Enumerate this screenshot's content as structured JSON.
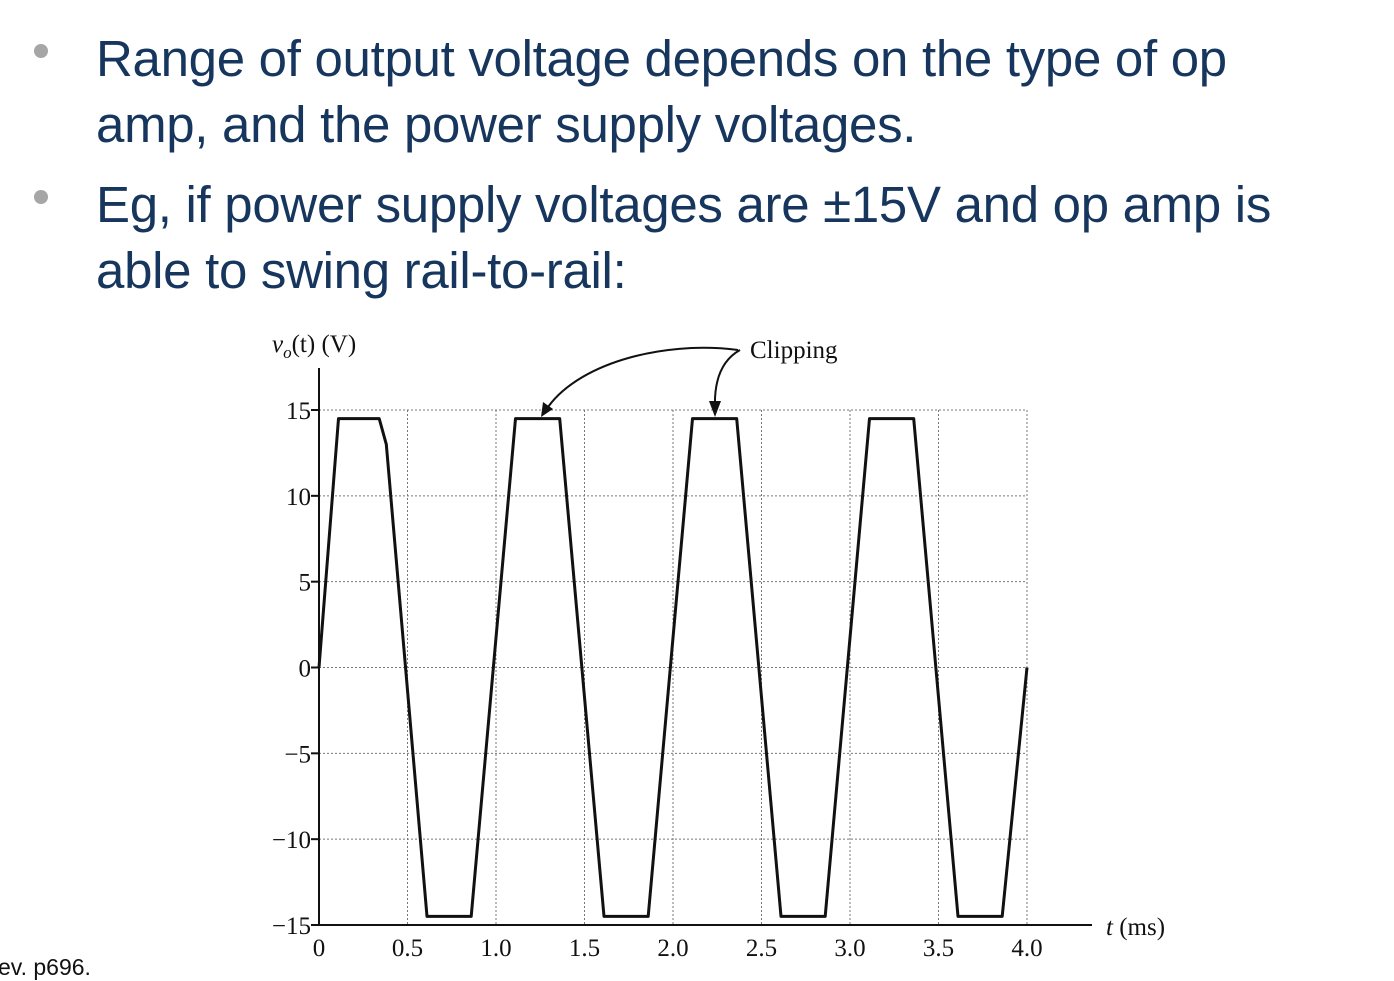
{
  "slide": {
    "bullets": [
      {
        "line1": "Range of output voltage depends on the type of op",
        "line2": "amp, and the power supply voltages."
      },
      {
        "line1": "Eg, if power supply voltages are ±15V and op amp is",
        "line2": "able to swing rail-to-rail:"
      }
    ],
    "source_note": "ev. p696."
  },
  "chart_data": {
    "type": "line",
    "ylabel_main": "v",
    "ylabel_sub": "o",
    "ylabel_rest": "(t) (V)",
    "xlabel_var": "t",
    "xlabel_unit": " (ms)",
    "annotation": "Clipping",
    "xlim": [
      0,
      4.0
    ],
    "ylim": [
      -15,
      15
    ],
    "grid": true,
    "x_ticks": [
      0,
      0.5,
      1.0,
      1.5,
      2.0,
      2.5,
      3.0,
      3.5,
      4.0
    ],
    "x_tick_labels": [
      "0",
      "0.5",
      "1.0",
      "1.5",
      "2.0",
      "2.5",
      "3.0",
      "3.5",
      "4.0"
    ],
    "y_ticks": [
      15,
      10,
      5,
      0,
      -5,
      -10,
      -15
    ],
    "y_tick_labels": [
      "15",
      "10",
      "5",
      "0",
      "−5",
      "−10",
      "−15"
    ],
    "series": [
      {
        "x": [
          0,
          0.11,
          0.34,
          0.38,
          0.61,
          0.86,
          1.11,
          1.36,
          1.61,
          1.86,
          2.11,
          2.36,
          2.61,
          2.86,
          3.11,
          3.36,
          3.61,
          3.86,
          4.0
        ],
        "y": [
          0,
          14.5,
          14.5,
          13,
          -14.5,
          -14.5,
          14.5,
          14.5,
          -14.5,
          -14.5,
          14.5,
          14.5,
          -14.5,
          -14.5,
          14.5,
          14.5,
          -14.5,
          -14.5,
          0
        ]
      }
    ]
  }
}
